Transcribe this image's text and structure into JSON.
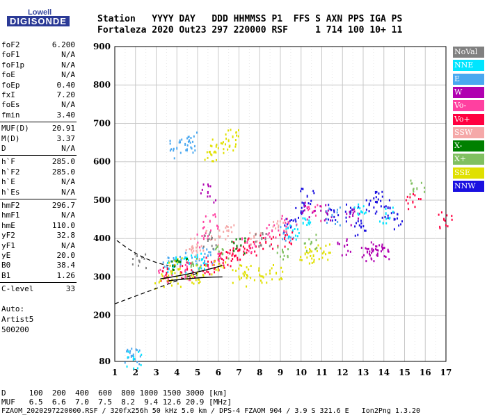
{
  "logo": {
    "top": "Lowell",
    "bottom": "DIGISONDE"
  },
  "header": {
    "labels": "Station   YYYY DAY   DDD HHMMSS P1  FFS S AXN PPS IGA PS",
    "values": "Fortaleza 2020 Out23 297 220000 RSF     1 714 100 10+ 11"
  },
  "scaled_params": {
    "group1": [
      {
        "k": "foF2",
        "v": "6.200"
      },
      {
        "k": "foF1",
        "v": "N/A"
      },
      {
        "k": "foF1p",
        "v": "N/A"
      },
      {
        "k": "foE",
        "v": "N/A"
      },
      {
        "k": "foEp",
        "v": "0.40"
      },
      {
        "k": "fxI",
        "v": "7.20"
      },
      {
        "k": "foEs",
        "v": "N/A"
      },
      {
        "k": "fmin",
        "v": "3.40"
      }
    ],
    "group2": [
      {
        "k": "MUF(D)",
        "v": "20.91"
      },
      {
        "k": "M(D)",
        "v": "3.37"
      },
      {
        "k": "D",
        "v": "N/A"
      }
    ],
    "group3": [
      {
        "k": "h`F",
        "v": "285.0"
      },
      {
        "k": "h`F2",
        "v": "285.0"
      },
      {
        "k": "h`E",
        "v": "N/A"
      },
      {
        "k": "h`Es",
        "v": "N/A"
      }
    ],
    "group4": [
      {
        "k": "hmF2",
        "v": "296.7"
      },
      {
        "k": "hmF1",
        "v": "N/A"
      },
      {
        "k": "hmE",
        "v": "110.0"
      },
      {
        "k": "yF2",
        "v": "32.8"
      },
      {
        "k": "yF1",
        "v": "N/A"
      },
      {
        "k": "yE",
        "v": "20.0"
      },
      {
        "k": "B0",
        "v": "38.4"
      },
      {
        "k": "B1",
        "v": "1.26"
      }
    ],
    "group5": [
      {
        "k": "C-level",
        "v": "33"
      }
    ],
    "auto": [
      "Auto:",
      "Artist5",
      "500200"
    ]
  },
  "legend": [
    {
      "label": "NoVal",
      "color": "#808080"
    },
    {
      "label": "NNE",
      "color": "#00e5ff"
    },
    {
      "label": "E",
      "color": "#4aa8f0"
    },
    {
      "label": "W",
      "color": "#b000b0"
    },
    {
      "label": "Vo-",
      "color": "#ff40a0"
    },
    {
      "label": "Vo+",
      "color": "#ff0040"
    },
    {
      "label": "SSW",
      "color": "#f5a8a8"
    },
    {
      "label": "X-",
      "color": "#008000"
    },
    {
      "label": "X+",
      "color": "#80c060"
    },
    {
      "label": "SSE",
      "color": "#e0e000"
    },
    {
      "label": "NNW",
      "color": "#1a10e0"
    }
  ],
  "footer": {
    "d_row": "D     100  200  400  600  800 1000 1500 3000 [km]",
    "muf_row": "MUF   6.5  6.6  7.0  7.5  8.2  9.4 12.6 20.9 [MHz]",
    "file_row": "FZAOM_2020297220000.RSF / 320fx256h 50 kHz 5.0 km / DPS-4 FZAOM 904 / 3.9 S 321.6 E   Ion2Png 1.3.20"
  },
  "chart_data": {
    "type": "scatter",
    "title": "",
    "xlabel": "",
    "ylabel": "",
    "xlim": [
      1,
      17
    ],
    "ylim": [
      80,
      900
    ],
    "x_ticks": [
      1,
      2,
      3,
      4,
      5,
      6,
      7,
      8,
      9,
      10,
      11,
      12,
      13,
      14,
      15,
      16,
      17
    ],
    "y_ticks": [
      80,
      200,
      300,
      400,
      500,
      600,
      700,
      800,
      900
    ],
    "grid": true,
    "legend_position": "right",
    "series": [
      {
        "name": "NNW",
        "color": "#1a10e0",
        "points": [
          [
            10,
            470
          ],
          [
            12.4,
            470
          ],
          [
            12.9,
            430
          ],
          [
            13.3,
            490
          ],
          [
            14.2,
            480
          ],
          [
            10.3,
            510
          ],
          [
            9.5,
            430
          ],
          [
            11.6,
            470
          ],
          [
            13.6,
            520
          ],
          [
            14.5,
            450
          ]
        ]
      },
      {
        "name": "W",
        "color": "#b000b0",
        "points": [
          [
            13.5,
            370
          ],
          [
            13.7,
            360
          ],
          [
            13.2,
            365
          ],
          [
            10.3,
            480
          ],
          [
            11.2,
            470
          ],
          [
            12.5,
            460
          ],
          [
            5.5,
            520
          ],
          [
            12.1,
            380
          ],
          [
            14.2,
            370
          ]
        ]
      },
      {
        "name": "E",
        "color": "#4aa8f0",
        "points": [
          [
            3.6,
            340
          ],
          [
            4.2,
            345
          ],
          [
            5.0,
            350
          ],
          [
            5.5,
            355
          ],
          [
            4.0,
            635
          ],
          [
            4.4,
            645
          ],
          [
            4.6,
            655
          ],
          [
            1.8,
            93
          ],
          [
            1.9,
            97
          ],
          [
            9.3,
            415
          ],
          [
            11.5,
            460
          ]
        ]
      },
      {
        "name": "NNE",
        "color": "#00e5ff",
        "points": [
          [
            3.8,
            330
          ],
          [
            4.6,
            335
          ],
          [
            5.2,
            345
          ],
          [
            9.6,
            420
          ],
          [
            10.1,
            440
          ],
          [
            1.9,
            85
          ],
          [
            12.9,
            470
          ],
          [
            14.1,
            465
          ]
        ]
      },
      {
        "name": "Vo+",
        "color": "#ff0040",
        "points": [
          [
            3.5,
            310
          ],
          [
            4.5,
            320
          ],
          [
            5.5,
            330
          ],
          [
            6.0,
            345
          ],
          [
            6.4,
            350
          ],
          [
            7.0,
            370
          ],
          [
            7.5,
            380
          ],
          [
            8.3,
            390
          ],
          [
            9.2,
            400
          ],
          [
            6.7,
            360
          ],
          [
            15.4,
            495
          ],
          [
            16.9,
            450
          ]
        ]
      },
      {
        "name": "Vo-",
        "color": "#ff40a0",
        "points": [
          [
            3.4,
            300
          ],
          [
            4.4,
            315
          ],
          [
            5.8,
            340
          ],
          [
            7.4,
            390
          ],
          [
            8.6,
            420
          ],
          [
            9.4,
            440
          ],
          [
            10.6,
            470
          ],
          [
            5.6,
            445
          ],
          [
            5.3,
            400
          ]
        ]
      },
      {
        "name": "SSW",
        "color": "#f5a8a8",
        "points": [
          [
            5.0,
            380
          ],
          [
            5.7,
            400
          ],
          [
            6.5,
            420
          ],
          [
            7.8,
            410
          ],
          [
            8.9,
            430
          ],
          [
            4.7,
            370
          ]
        ]
      },
      {
        "name": "SSE",
        "color": "#e0e000",
        "points": [
          [
            3.2,
            290
          ],
          [
            4.0,
            300
          ],
          [
            5.0,
            310
          ],
          [
            6.0,
            320
          ],
          [
            7.0,
            300
          ],
          [
            8.0,
            305
          ],
          [
            8.8,
            310
          ],
          [
            10.2,
            360
          ],
          [
            10.6,
            355
          ],
          [
            11.1,
            365
          ],
          [
            5.6,
            625
          ],
          [
            5.9,
            640
          ],
          [
            6.5,
            655
          ],
          [
            6.7,
            665
          ],
          [
            3.9,
            330
          ],
          [
            4.7,
            305
          ],
          [
            7.3,
            310
          ]
        ]
      },
      {
        "name": "X+",
        "color": "#80c060",
        "points": [
          [
            4.8,
            330
          ],
          [
            6.2,
            360
          ],
          [
            9.1,
            370
          ],
          [
            10.5,
            390
          ],
          [
            15.6,
            530
          ]
        ]
      },
      {
        "name": "X-",
        "color": "#008000",
        "points": [
          [
            4.1,
            340
          ],
          [
            6.9,
            380
          ]
        ]
      },
      {
        "name": "NoVal",
        "color": "#808080",
        "points": [
          [
            2.2,
            340
          ],
          [
            5.5,
            395
          ],
          [
            8.1,
            400
          ]
        ]
      }
    ]
  }
}
